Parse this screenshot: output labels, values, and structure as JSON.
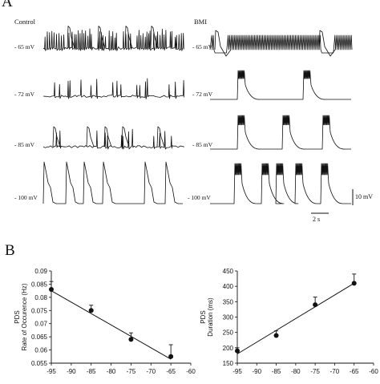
{
  "panel_a": {
    "letter": "A",
    "left_title": "Control",
    "right_title": "BMI",
    "left_labels": [
      "- 65 mV",
      "- 72 mV",
      "- 85 mV",
      "- 100 mV"
    ],
    "right_labels": [
      "- 65 mV",
      "- 72 mV",
      "- 85 mV",
      "- 100 mV"
    ],
    "scale_voltage": "10 mV",
    "scale_time": "2 s"
  },
  "panel_b": {
    "letter": "B"
  },
  "chart_data": [
    {
      "type": "scatter",
      "title": "",
      "xlabel": "",
      "ylabel": [
        "PDS",
        "Rate of Occurence (Hz)"
      ],
      "xlim": [
        -95,
        -60
      ],
      "ylim": [
        0.055,
        0.09
      ],
      "xticks": [
        -95,
        -90,
        -85,
        -80,
        -75,
        -70,
        -65,
        -60
      ],
      "yticks": [
        0.055,
        0.06,
        0.065,
        0.07,
        0.075,
        0.08,
        0.085,
        0.09
      ],
      "ytick_labels": [
        "0.055",
        "0.06",
        "0.065",
        "0.07",
        "0.075",
        "0.08",
        "0.085",
        "0.09"
      ],
      "x": [
        -95,
        -85,
        -75,
        -65
      ],
      "y": [
        0.083,
        0.075,
        0.064,
        0.0575
      ],
      "err": [
        0.003,
        0.002,
        0.0025,
        0.0045
      ],
      "fit": {
        "x": [
          -95,
          -65
        ],
        "y": [
          0.0825,
          0.0565
        ]
      }
    },
    {
      "type": "scatter",
      "title": "",
      "xlabel": "",
      "ylabel": [
        "PDS",
        "Duration (ms)"
      ],
      "xlim": [
        -95,
        -60
      ],
      "ylim": [
        150,
        450
      ],
      "xticks": [
        -95,
        -90,
        -85,
        -80,
        -75,
        -70,
        -65,
        -60
      ],
      "yticks": [
        150,
        200,
        250,
        300,
        350,
        400,
        450
      ],
      "ytick_labels": [
        "150",
        "200",
        "250",
        "300",
        "350",
        "400",
        "450"
      ],
      "x": [
        -95,
        -85,
        -75,
        -65
      ],
      "y": [
        190,
        240,
        340,
        410
      ],
      "err": [
        10,
        15,
        25,
        30
      ],
      "fit": {
        "x": [
          -95,
          -65
        ],
        "y": [
          180,
          410
        ]
      }
    }
  ]
}
